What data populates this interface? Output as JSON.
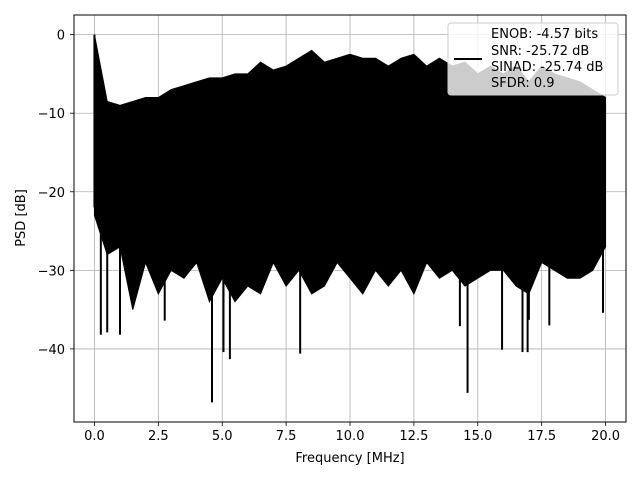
{
  "chart_data": {
    "type": "line",
    "xlabel": "Frequency [MHz]",
    "ylabel": "PSD [dB]",
    "xlim": [
      -0.8,
      20.8
    ],
    "ylim": [
      -49.3,
      2.5
    ],
    "xticks": [
      0.0,
      2.5,
      5.0,
      7.5,
      10.0,
      12.5,
      15.0,
      17.5,
      20.0
    ],
    "xtick_labels": [
      "0.0",
      "2.5",
      "5.0",
      "7.5",
      "10.0",
      "12.5",
      "15.0",
      "17.5",
      "20.0"
    ],
    "yticks": [
      0,
      -10,
      -20,
      -30,
      -40
    ],
    "ytick_labels": [
      "0",
      "−10",
      "−20",
      "−30",
      "−40"
    ],
    "grid": true,
    "legend_position": "top-right",
    "series_color": "#000000",
    "legend": [
      "ENOB: -4.57 bits",
      "SNR: -25.72 dB",
      "SINAD: -25.74 dB",
      "SFDR: 0.9"
    ],
    "series": [
      {
        "x": [
          0.0,
          0.5,
          1.0,
          1.5,
          2.0,
          2.5,
          3.0,
          3.5,
          4.0,
          4.5,
          5.0,
          5.5,
          6.0,
          6.5,
          7.0,
          7.5,
          8.0,
          8.5,
          9.0,
          9.5,
          10.0,
          10.5,
          11.0,
          11.5,
          12.0,
          12.5,
          13.0,
          13.5,
          14.0,
          14.5,
          15.0,
          15.5,
          16.0,
          16.5,
          17.0,
          17.5,
          18.0,
          18.5,
          19.0,
          19.5,
          20.0
        ],
        "upper": [
          0.0,
          -8.5,
          -9.0,
          -8.5,
          -8.0,
          -8.0,
          -7.0,
          -6.5,
          -6.0,
          -5.5,
          -5.5,
          -5.0,
          -5.0,
          -3.5,
          -4.5,
          -4.0,
          -3.0,
          -2.0,
          -3.5,
          -3.0,
          -2.5,
          -3.0,
          -3.0,
          -4.0,
          -3.0,
          -2.5,
          -4.0,
          -3.0,
          -4.0,
          -3.5,
          -5.0,
          -4.0,
          -5.0,
          -4.0,
          -6.0,
          -4.0,
          -5.0,
          -5.5,
          -6.0,
          -7.0,
          -8.0
        ],
        "lower": [
          -23.0,
          -28.0,
          -27.0,
          -35.0,
          -29.0,
          -33.0,
          -30.0,
          -31.0,
          -29.0,
          -34.0,
          -31.0,
          -34.0,
          -32.0,
          -33.0,
          -29.0,
          -32.0,
          -30.0,
          -33.0,
          -32.0,
          -29.0,
          -31.0,
          -33.0,
          -30.0,
          -32.0,
          -30.0,
          -33.0,
          -29.0,
          -31.0,
          -30.0,
          -32.0,
          -31.0,
          -30.0,
          -30.0,
          -32.0,
          -33.0,
          -29.0,
          -30.0,
          -31.0,
          -31.0,
          -30.0,
          -27.0
        ],
        "spikes": [
          {
            "x": 0.25,
            "y": -38.2
          },
          {
            "x": 0.5,
            "y": -37.9
          },
          {
            "x": 1.0,
            "y": -38.2
          },
          {
            "x": 2.75,
            "y": -36.4
          },
          {
            "x": 4.6,
            "y": -46.8
          },
          {
            "x": 5.05,
            "y": -40.4
          },
          {
            "x": 5.3,
            "y": -41.3
          },
          {
            "x": 8.05,
            "y": -40.6
          },
          {
            "x": 14.3,
            "y": -37.1
          },
          {
            "x": 14.6,
            "y": -45.6
          },
          {
            "x": 15.95,
            "y": -40.1
          },
          {
            "x": 16.75,
            "y": -40.4
          },
          {
            "x": 16.95,
            "y": -40.4
          },
          {
            "x": 17.0,
            "y": -36.3
          },
          {
            "x": 17.8,
            "y": -37.0
          },
          {
            "x": 19.9,
            "y": -35.4
          }
        ]
      }
    ]
  }
}
